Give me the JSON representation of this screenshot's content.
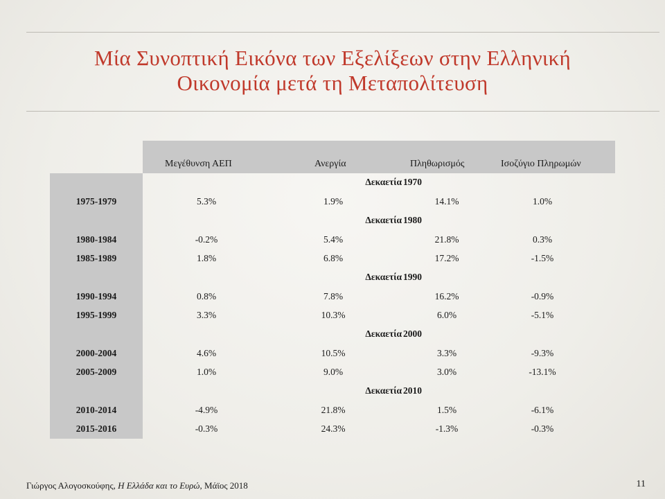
{
  "slide": {
    "title_line1": "Μία Συνοπτική Εικόνα των Εξελίξεων στην Ελληνική",
    "title_line2": "Οικονομία μετά τη Μεταπολίτευση"
  },
  "table": {
    "headers": [
      "Μεγέθυνση ΑΕΠ",
      "Ανεργία",
      "Πληθωρισμός",
      "Ισοζύγιο Πληρωμών"
    ],
    "decade_word": "Δεκαετία",
    "groups": [
      {
        "decade": "1970",
        "rows": [
          {
            "period": "1975-1979",
            "values": [
              "5.3%",
              "1.9%",
              "14.1%",
              "1.0%"
            ]
          }
        ]
      },
      {
        "decade": "1980",
        "rows": [
          {
            "period": "1980-1984",
            "values": [
              "-0.2%",
              "5.4%",
              "21.8%",
              "0.3%"
            ]
          },
          {
            "period": "1985-1989",
            "values": [
              "1.8%",
              "6.8%",
              "17.2%",
              "-1.5%"
            ]
          }
        ]
      },
      {
        "decade": "1990",
        "rows": [
          {
            "period": "1990-1994",
            "values": [
              "0.8%",
              "7.8%",
              "16.2%",
              "-0.9%"
            ]
          },
          {
            "period": "1995-1999",
            "values": [
              "3.3%",
              "10.3%",
              "6.0%",
              "-5.1%"
            ]
          }
        ]
      },
      {
        "decade": "2000",
        "rows": [
          {
            "period": "2000-2004",
            "values": [
              "4.6%",
              "10.5%",
              "3.3%",
              "-9.3%"
            ]
          },
          {
            "period": "2005-2009",
            "values": [
              "1.0%",
              "9.0%",
              "3.0%",
              "-13.1%"
            ]
          }
        ]
      },
      {
        "decade": "2010",
        "rows": [
          {
            "period": "2010-2014",
            "values": [
              "-4.9%",
              "21.8%",
              "1.5%",
              "-6.1%"
            ]
          },
          {
            "period": "2015-2016",
            "values": [
              "-0.3%",
              "24.3%",
              "-1.3%",
              "-0.3%"
            ]
          }
        ]
      }
    ]
  },
  "footer": {
    "author": "Γιώργος Αλογοσκούφης, ",
    "book": "Η Ελλάδα και το Ευρώ",
    "date": ", Μάϊος 2018",
    "page": "11"
  },
  "colors": {
    "title": "#c0392b",
    "band": "#c8c8c8"
  }
}
